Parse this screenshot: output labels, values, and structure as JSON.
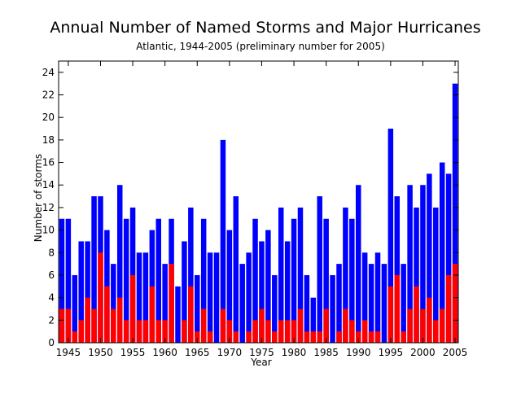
{
  "chart_data": {
    "type": "bar",
    "title": "Annual Number of Named Storms and Major Hurricanes",
    "subtitle": "Atlantic, 1944-2005 (preliminary number for 2005)",
    "xlabel": "Year",
    "ylabel": "Number of storms",
    "ylim": [
      0,
      25
    ],
    "yticks": [
      0,
      2,
      4,
      6,
      8,
      10,
      12,
      14,
      16,
      18,
      20,
      22,
      24
    ],
    "xlim": [
      1943.5,
      2005.5
    ],
    "xticks": [
      1945,
      1950,
      1955,
      1960,
      1965,
      1970,
      1975,
      1980,
      1985,
      1990,
      1995,
      2000,
      2005
    ],
    "x": [
      1944,
      1945,
      1946,
      1947,
      1948,
      1949,
      1950,
      1951,
      1952,
      1953,
      1954,
      1955,
      1956,
      1957,
      1958,
      1959,
      1960,
      1961,
      1962,
      1963,
      1964,
      1965,
      1966,
      1967,
      1968,
      1969,
      1970,
      1971,
      1972,
      1973,
      1974,
      1975,
      1976,
      1977,
      1978,
      1979,
      1980,
      1981,
      1982,
      1983,
      1984,
      1985,
      1986,
      1987,
      1988,
      1989,
      1990,
      1991,
      1992,
      1993,
      1994,
      1995,
      1996,
      1997,
      1998,
      1999,
      2000,
      2001,
      2002,
      2003,
      2004,
      2005
    ],
    "series": [
      {
        "color": "#0000ff",
        "values": [
          11,
          11,
          6,
          9,
          9,
          13,
          13,
          10,
          7,
          14,
          11,
          12,
          8,
          8,
          10,
          11,
          7,
          11,
          5,
          9,
          12,
          6,
          11,
          8,
          8,
          18,
          10,
          13,
          7,
          8,
          11,
          9,
          10,
          6,
          12,
          9,
          11,
          12,
          6,
          4,
          13,
          11,
          6,
          7,
          12,
          11,
          14,
          8,
          7,
          8,
          7,
          19,
          13,
          7,
          14,
          12,
          14,
          15,
          12,
          16,
          15,
          23
        ]
      },
      {
        "color": "#ff0000",
        "values": [
          3,
          3,
          1,
          2,
          4,
          3,
          8,
          5,
          3,
          4,
          2,
          6,
          2,
          2,
          5,
          2,
          2,
          7,
          0,
          2,
          5,
          1,
          3,
          1,
          0,
          3,
          2,
          1,
          0,
          1,
          2,
          3,
          2,
          1,
          2,
          2,
          2,
          3,
          1,
          1,
          1,
          3,
          0,
          1,
          3,
          2,
          1,
          2,
          1,
          1,
          0,
          5,
          6,
          1,
          3,
          5,
          3,
          4,
          2,
          3,
          6,
          7
        ]
      }
    ]
  }
}
